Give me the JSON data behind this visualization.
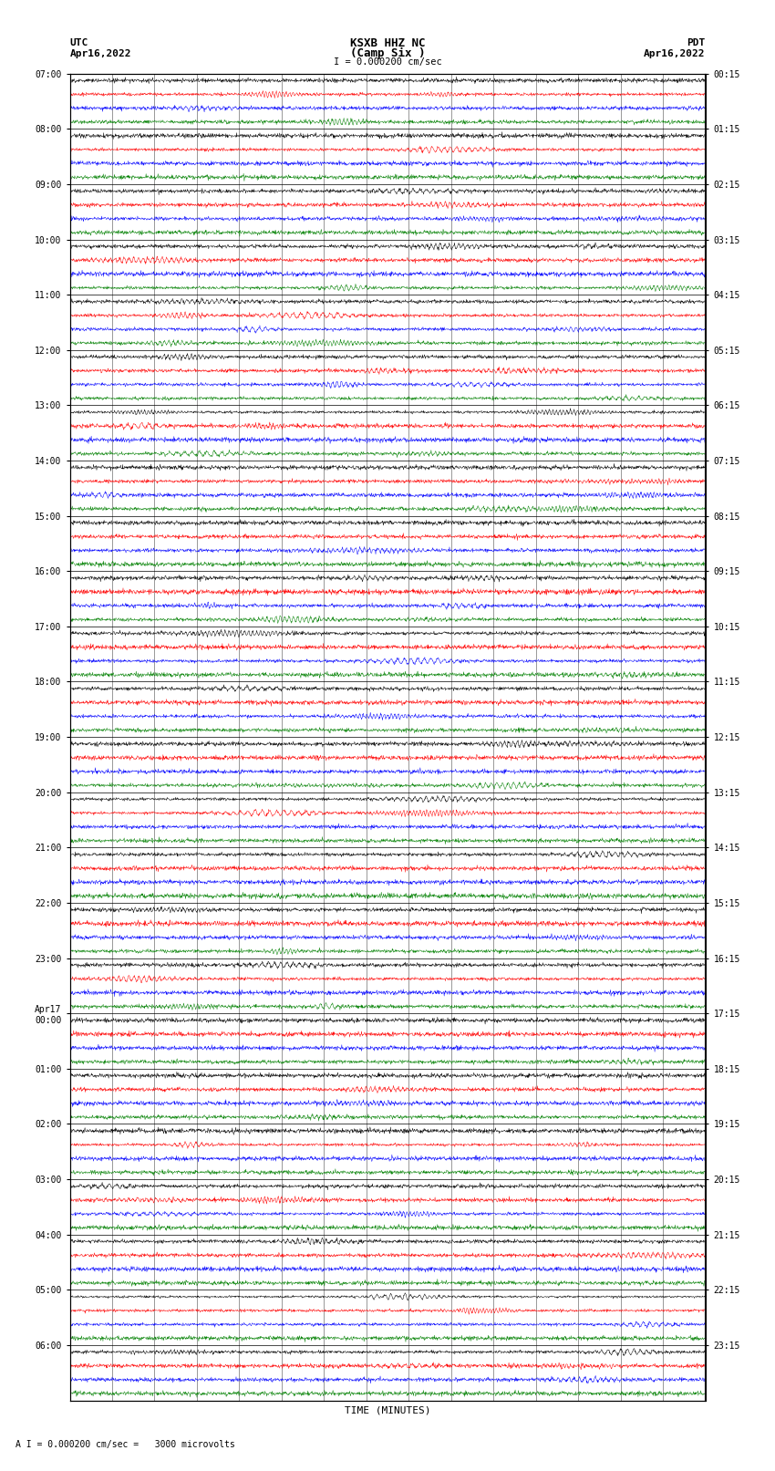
{
  "title_line1": "KSXB HHZ NC",
  "title_line2": "(Camp Six )",
  "scale_label": "I = 0.000200 cm/sec",
  "bottom_label": "A I = 0.000200 cm/sec =   3000 microvolts",
  "xlabel": "TIME (MINUTES)",
  "utc_line1": "UTC",
  "utc_line2": "Apr16,2022",
  "pdt_line1": "PDT",
  "pdt_line2": "Apr16,2022",
  "left_times_utc": [
    "07:00",
    "08:00",
    "09:00",
    "10:00",
    "11:00",
    "12:00",
    "13:00",
    "14:00",
    "15:00",
    "16:00",
    "17:00",
    "18:00",
    "19:00",
    "20:00",
    "21:00",
    "22:00",
    "23:00",
    "Apr17\n00:00",
    "01:00",
    "02:00",
    "03:00",
    "04:00",
    "05:00",
    "06:00"
  ],
  "right_times_pdt": [
    "00:15",
    "01:15",
    "02:15",
    "03:15",
    "04:15",
    "05:15",
    "06:15",
    "07:15",
    "08:15",
    "09:15",
    "10:15",
    "11:15",
    "12:15",
    "13:15",
    "14:15",
    "15:15",
    "16:15",
    "17:15",
    "18:15",
    "19:15",
    "20:15",
    "21:15",
    "22:15",
    "23:15"
  ],
  "n_rows": 96,
  "n_hours": 24,
  "traces_per_hour": 4,
  "colors": [
    "black",
    "red",
    "blue",
    "green"
  ],
  "bg_color": "white",
  "line_width": 0.35,
  "xmin": 0,
  "xmax": 15,
  "xticks": [
    0,
    1,
    2,
    3,
    4,
    5,
    6,
    7,
    8,
    9,
    10,
    11,
    12,
    13,
    14,
    15
  ],
  "figsize": [
    8.5,
    16.13
  ],
  "dpi": 100
}
